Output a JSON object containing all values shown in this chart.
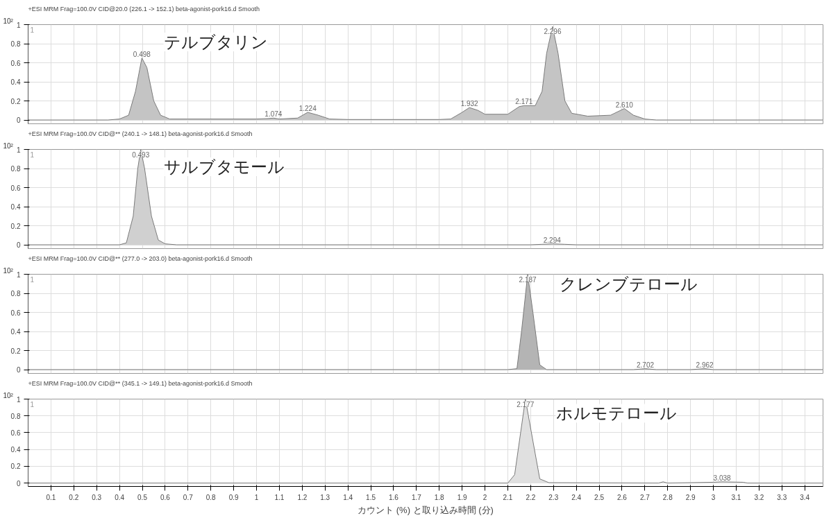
{
  "chart_data": [
    {
      "type": "area",
      "title": "+ESI MRM Frag=100.0V CID@20.0 (226.1 -> 152.1) beta-agonist-pork16.d  Smooth",
      "xlim": [
        0,
        3.48
      ],
      "ylim": [
        -0.04,
        1
      ],
      "yticks": [
        0,
        0.2,
        0.4,
        0.6,
        0.8,
        1
      ],
      "grid": true,
      "tick_labels": "y",
      "x": [
        0,
        0.35,
        0.4,
        0.44,
        0.47,
        0.498,
        0.52,
        0.55,
        0.58,
        0.62,
        0.7,
        1.0,
        1.05,
        1.074,
        1.1,
        1.18,
        1.224,
        1.27,
        1.32,
        1.4,
        1.8,
        1.85,
        1.9,
        1.932,
        1.97,
        2.0,
        2.1,
        2.15,
        2.171,
        2.22,
        2.25,
        2.27,
        2.296,
        2.32,
        2.35,
        2.38,
        2.45,
        2.55,
        2.61,
        2.65,
        2.7,
        2.75,
        3.48
      ],
      "series": [
        {
          "color": "#c4c4c4",
          "values": [
            0,
            0,
            0.01,
            0.05,
            0.3,
            0.65,
            0.55,
            0.2,
            0.05,
            0.01,
            0.01,
            0.01,
            0.015,
            0.02,
            0.01,
            0.02,
            0.08,
            0.05,
            0.01,
            0.005,
            0.005,
            0.01,
            0.08,
            0.13,
            0.1,
            0.06,
            0.06,
            0.14,
            0.15,
            0.15,
            0.3,
            0.7,
            0.98,
            0.7,
            0.2,
            0.07,
            0.04,
            0.05,
            0.12,
            0.05,
            0.01,
            0,
            0
          ]
        }
      ],
      "annotations": [
        "10²",
        "1",
        "テルブタリン",
        {
          "text": "0.498",
          "x": 0.498,
          "y": 0.65
        },
        {
          "text": "1.074",
          "x": 1.074,
          "y": 0.02
        },
        {
          "text": "1.224",
          "x": 1.224,
          "y": 0.08
        },
        {
          "text": "1.932",
          "x": 1.932,
          "y": 0.13
        },
        {
          "text": "2.171",
          "x": 2.171,
          "y": 0.15
        },
        {
          "text": "2.296",
          "x": 2.296,
          "y": 0.98
        },
        {
          "text": "2.610",
          "x": 2.61,
          "y": 0.12
        }
      ]
    },
    {
      "type": "area",
      "title": "+ESI MRM Frag=100.0V CID@** (240.1 -> 148.1) beta-agonist-pork16.d  Smooth",
      "xlim": [
        0,
        3.48
      ],
      "ylim": [
        -0.04,
        1
      ],
      "yticks": [
        0,
        0.2,
        0.4,
        0.6,
        0.8,
        1
      ],
      "grid": true,
      "tick_labels": "y",
      "x": [
        0,
        0.4,
        0.43,
        0.46,
        0.48,
        0.493,
        0.51,
        0.54,
        0.57,
        0.6,
        0.65,
        2.2,
        2.25,
        2.294,
        2.35,
        2.4,
        3.48
      ],
      "series": [
        {
          "color": "#d0d0d0",
          "values": [
            0,
            0,
            0.02,
            0.3,
            0.8,
            1.0,
            0.8,
            0.3,
            0.05,
            0.01,
            0,
            0,
            0.005,
            0.01,
            0.005,
            0,
            0
          ]
        }
      ],
      "annotations": [
        "10²",
        "1",
        "サルブタモール",
        {
          "text": "0.493",
          "x": 0.493,
          "y": 1.0
        },
        {
          "text": "2.294",
          "x": 2.294,
          "y": 0.01
        }
      ]
    },
    {
      "type": "area",
      "title": "+ESI MRM Frag=100.0V CID@** (277.0 -> 203.0) beta-agonist-pork16.d  Smooth",
      "xlim": [
        0,
        3.48
      ],
      "ylim": [
        -0.04,
        1
      ],
      "yticks": [
        0,
        0.2,
        0.4,
        0.6,
        0.8,
        1
      ],
      "grid": true,
      "tick_labels": "y",
      "x": [
        0,
        2.1,
        2.14,
        2.16,
        2.187,
        2.21,
        2.24,
        2.27,
        2.65,
        2.702,
        2.75,
        2.9,
        2.962,
        3.0,
        3.48
      ],
      "series": [
        {
          "color": "#b4b4b4",
          "values": [
            0,
            0,
            0.01,
            0.4,
            1.0,
            0.6,
            0.05,
            0,
            0,
            0.01,
            0,
            0,
            0.01,
            0,
            0
          ]
        }
      ],
      "annotations": [
        "10²",
        "1",
        "クレンブテロール",
        {
          "text": "2.187",
          "x": 2.187,
          "y": 1.0
        },
        {
          "text": "2.702",
          "x": 2.702,
          "y": 0.01
        },
        {
          "text": "2.962",
          "x": 2.962,
          "y": 0.01
        }
      ]
    },
    {
      "type": "area",
      "title": "+ESI MRM Frag=100.0V CID@** (345.1 -> 149.1) beta-agonist-pork16.d  Smooth",
      "xlabel": "カウント (%) と取り込み時間 (分)",
      "xlim": [
        0,
        3.48
      ],
      "ylim": [
        -0.04,
        1
      ],
      "yticks": [
        0,
        0.2,
        0.4,
        0.6,
        0.8,
        1
      ],
      "grid": true,
      "xticks": [
        0.1,
        0.2,
        0.3,
        0.4,
        0.5,
        0.6,
        0.7,
        0.8,
        0.9,
        1,
        1.1,
        1.2,
        1.3,
        1.4,
        1.5,
        1.6,
        1.7,
        1.8,
        1.9,
        2,
        2.1,
        2.2,
        2.3,
        2.4,
        2.5,
        2.6,
        2.7,
        2.8,
        2.9,
        3,
        3.1,
        3.2,
        3.3,
        3.4
      ],
      "x": [
        0,
        2.1,
        2.13,
        2.177,
        2.21,
        2.24,
        2.28,
        2.76,
        2.78,
        2.8,
        3.0,
        3.038,
        3.13,
        3.15,
        3.48
      ],
      "series": [
        {
          "color": "#e0e0e0",
          "values": [
            0,
            0,
            0.1,
            1.0,
            0.5,
            0.05,
            0.005,
            0,
            0.015,
            0,
            0.01,
            0.015,
            0.01,
            0,
            0
          ]
        }
      ],
      "annotations": [
        "10²",
        "1",
        "ホルモテロール",
        {
          "text": "2.177",
          "x": 2.177,
          "y": 1.0
        },
        {
          "text": "3.038",
          "x": 3.038,
          "y": 0.015
        }
      ]
    }
  ]
}
